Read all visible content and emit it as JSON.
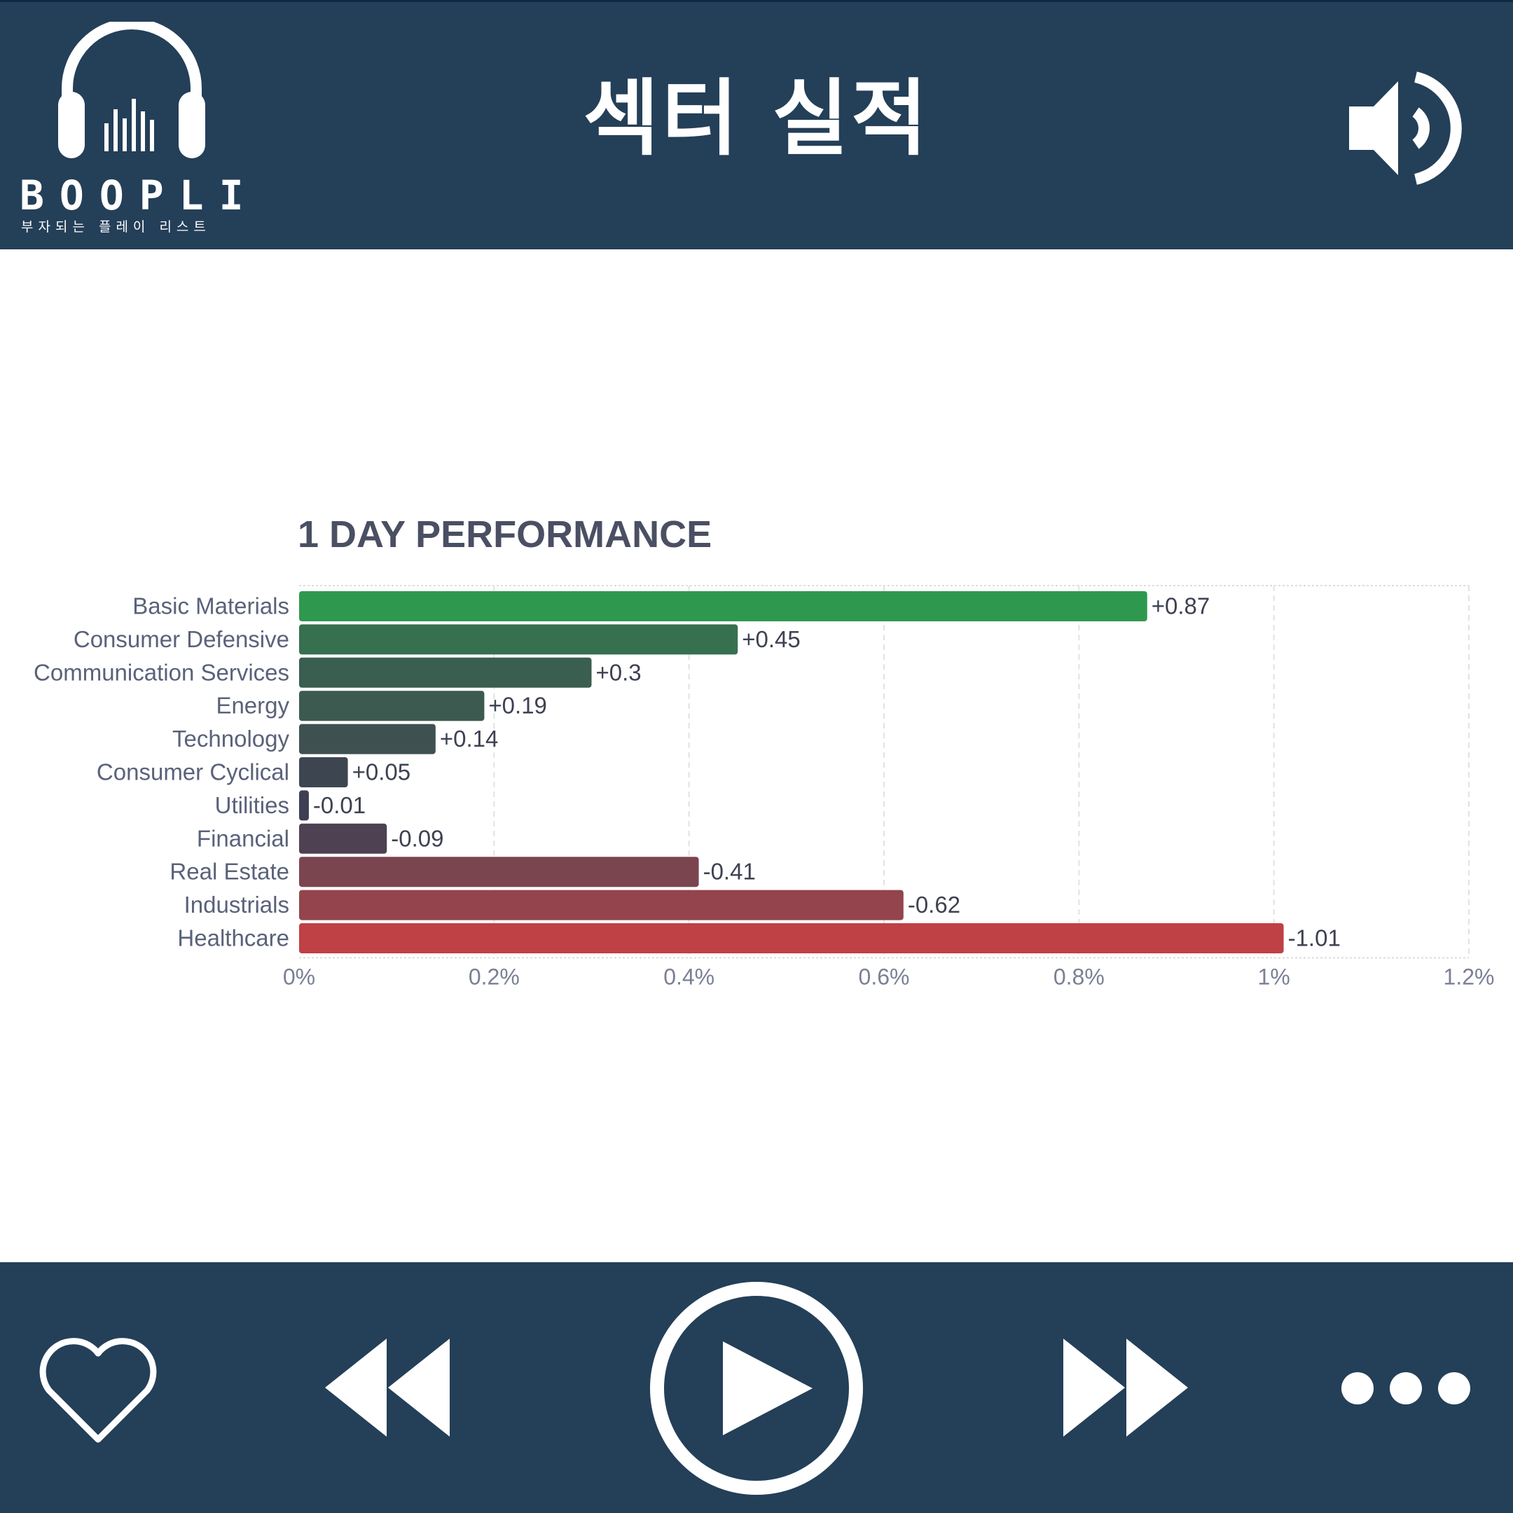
{
  "header": {
    "title": "섹터 실적",
    "brand": "BOOPLI",
    "brand_subtitle": "부자되는 플레이 리스트",
    "logo_icon": "headphones-icon",
    "volume_icon": "speaker-icon"
  },
  "footer": {
    "icons": [
      "heart-icon",
      "rewind-icon",
      "play-icon",
      "fast-forward-icon",
      "more-icon"
    ]
  },
  "colors": {
    "header_bg": "#243f58",
    "positive": "#2f984f",
    "negative": "#bf4045"
  },
  "chart_data": {
    "type": "bar",
    "orientation": "horizontal",
    "title": "1 DAY PERFORMANCE",
    "categories": [
      "Basic Materials",
      "Consumer Defensive",
      "Communication Services",
      "Energy",
      "Technology",
      "Consumer Cyclical",
      "Utilities",
      "Financial",
      "Real Estate",
      "Industrials",
      "Healthcare"
    ],
    "values": [
      0.87,
      0.45,
      0.3,
      0.19,
      0.14,
      0.05,
      -0.01,
      -0.09,
      -0.41,
      -0.62,
      -1.01
    ],
    "data_labels": [
      "+0.87",
      "+0.45",
      "+0.3",
      "+0.19",
      "+0.14",
      "+0.05",
      "-0.01",
      "-0.09",
      "-0.41",
      "-0.62",
      "-1.01"
    ],
    "bar_colors": [
      "#2f984f",
      "#37704e",
      "#3a5e4f",
      "#3c5a50",
      "#3e5150",
      "#3d4650",
      "#3e3f52",
      "#4e4152",
      "#7b4550",
      "#93444c",
      "#bf4045"
    ],
    "scale": "absolute value",
    "xlim": [
      0,
      1.2
    ],
    "xticks": [
      "0%",
      "0.2%",
      "0.4%",
      "0.6%",
      "0.8%",
      "1%",
      "1.2%"
    ],
    "grid": true
  }
}
